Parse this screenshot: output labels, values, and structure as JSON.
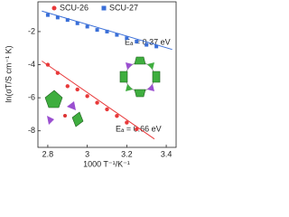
{
  "chart_data": {
    "type": "scatter",
    "x_label": "1000 T⁻¹/K⁻¹",
    "y_label": "ln(σT/S cm⁻¹ K)",
    "xlim": [
      2.75,
      3.45
    ],
    "xticks": [
      2.8,
      3.0,
      3.2,
      3.4
    ],
    "ylim": [
      -9,
      -0.2
    ],
    "yticks": [
      -2,
      -4,
      -6,
      -8
    ],
    "series": [
      {
        "name": "SCU-26",
        "color": "#e8393a",
        "marker": "circle",
        "x": [
          2.8,
          2.85,
          2.9,
          2.95,
          3.0,
          3.05,
          3.1,
          3.15,
          3.2,
          3.25
        ],
        "values": [
          -4.0,
          -4.5,
          -5.3,
          -5.5,
          -5.9,
          -6.3,
          -6.7,
          -7.1,
          -7.5,
          -7.9
        ],
        "fit": {
          "x": [
            2.77,
            3.34
          ],
          "values": [
            -3.78,
            -8.49
          ]
        },
        "annotation": "Eₐ = 0.66 eV"
      },
      {
        "name": "SCU-27",
        "color": "#3a6fd8",
        "marker": "square",
        "x": [
          2.8,
          2.85,
          2.9,
          2.95,
          3.0,
          3.05,
          3.1,
          3.15,
          3.2,
          3.25,
          3.3,
          3.35
        ],
        "values": [
          -1.0,
          -1.15,
          -1.3,
          -1.5,
          -1.7,
          -1.9,
          -2.0,
          -2.2,
          -2.4,
          -2.6,
          -2.8,
          -2.9
        ],
        "fit": {
          "x": [
            2.77,
            3.43
          ],
          "values": [
            -0.76,
            -3.08
          ]
        },
        "annotation": "Eₐ = 0.37 eV"
      }
    ]
  }
}
